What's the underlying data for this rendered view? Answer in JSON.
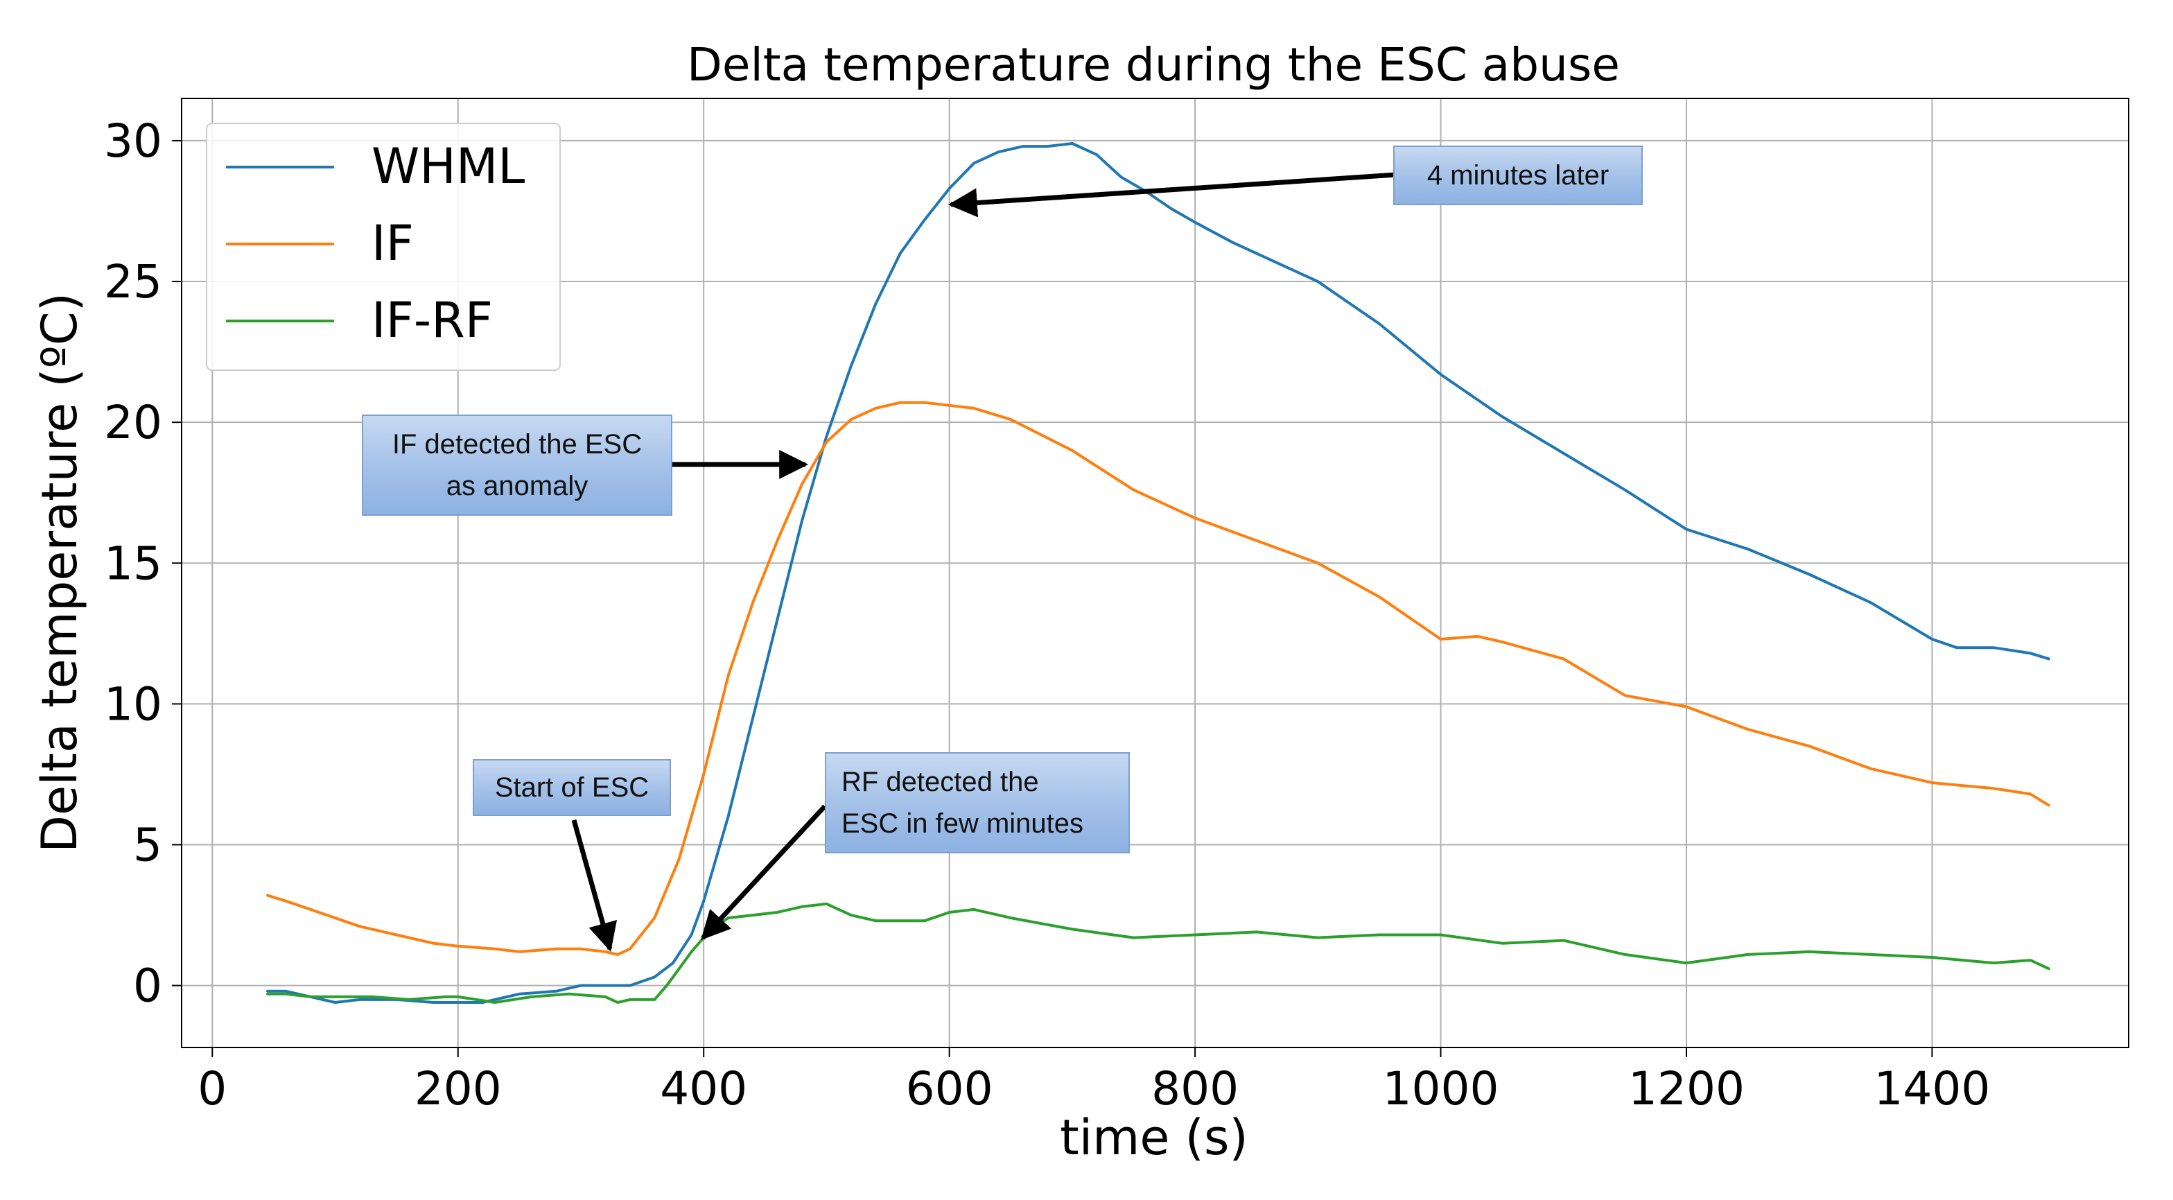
{
  "chart_data": {
    "type": "line",
    "title": "Delta temperature during the ESC abuse",
    "xlabel": "time (s)",
    "ylabel": "Delta temperature (ºC)",
    "xlim": [
      -25,
      1560
    ],
    "ylim": [
      -2.2,
      31.5
    ],
    "xticks": [
      0,
      200,
      400,
      600,
      800,
      1000,
      1200,
      1400
    ],
    "yticks": [
      0,
      5,
      10,
      15,
      20,
      25,
      30
    ],
    "grid": true,
    "legend_position": "top-left",
    "series": [
      {
        "name": "WHML",
        "color": "#1f77b4",
        "x": [
          45,
          60,
          80,
          100,
          120,
          150,
          180,
          200,
          220,
          250,
          280,
          300,
          320,
          340,
          360,
          375,
          390,
          400,
          420,
          440,
          460,
          480,
          500,
          520,
          540,
          560,
          580,
          600,
          620,
          640,
          660,
          680,
          700,
          720,
          740,
          760,
          780,
          800,
          830,
          860,
          900,
          950,
          1000,
          1050,
          1100,
          1150,
          1200,
          1250,
          1300,
          1350,
          1400,
          1420,
          1450,
          1480,
          1495
        ],
        "y": [
          -0.2,
          -0.2,
          -0.4,
          -0.6,
          -0.5,
          -0.5,
          -0.6,
          -0.6,
          -0.6,
          -0.3,
          -0.2,
          0,
          0,
          0,
          0.3,
          0.8,
          1.8,
          3,
          6,
          9.5,
          13,
          16.5,
          19.5,
          22,
          24.2,
          26,
          27.2,
          28.3,
          29.2,
          29.6,
          29.8,
          29.8,
          29.9,
          29.5,
          28.7,
          28.2,
          27.6,
          27.1,
          26.4,
          25.8,
          25,
          23.5,
          21.7,
          20.2,
          18.9,
          17.6,
          16.2,
          15.5,
          14.6,
          13.6,
          12.3,
          12,
          12,
          11.8,
          11.6
        ]
      },
      {
        "name": "IF",
        "color": "#ff7f0e",
        "x": [
          45,
          60,
          80,
          100,
          120,
          150,
          180,
          200,
          230,
          250,
          280,
          300,
          320,
          330,
          340,
          360,
          380,
          400,
          420,
          440,
          460,
          480,
          500,
          520,
          540,
          560,
          580,
          600,
          620,
          650,
          700,
          750,
          800,
          850,
          900,
          950,
          1000,
          1030,
          1050,
          1100,
          1150,
          1200,
          1250,
          1300,
          1350,
          1400,
          1450,
          1480,
          1495
        ],
        "y": [
          3.2,
          3,
          2.7,
          2.4,
          2.1,
          1.8,
          1.5,
          1.4,
          1.3,
          1.2,
          1.3,
          1.3,
          1.2,
          1.1,
          1.3,
          2.4,
          4.5,
          7.5,
          11,
          13.6,
          15.8,
          17.8,
          19.3,
          20.1,
          20.5,
          20.7,
          20.7,
          20.6,
          20.5,
          20.1,
          19,
          17.6,
          16.6,
          15.8,
          15,
          13.8,
          12.3,
          12.4,
          12.2,
          11.6,
          10.3,
          9.9,
          9.1,
          8.5,
          7.7,
          7.2,
          7,
          6.8,
          6.4
        ]
      },
      {
        "name": "IF-RF",
        "color": "#2ca02c",
        "x": [
          45,
          60,
          80,
          100,
          130,
          160,
          190,
          200,
          230,
          260,
          290,
          320,
          330,
          340,
          360,
          370,
          380,
          390,
          400,
          410,
          420,
          440,
          460,
          480,
          500,
          520,
          540,
          560,
          580,
          600,
          620,
          650,
          700,
          750,
          800,
          850,
          900,
          950,
          1000,
          1050,
          1100,
          1150,
          1200,
          1250,
          1300,
          1350,
          1400,
          1450,
          1480,
          1495
        ],
        "y": [
          -0.3,
          -0.3,
          -0.4,
          -0.4,
          -0.4,
          -0.5,
          -0.4,
          -0.4,
          -0.6,
          -0.4,
          -0.3,
          -0.4,
          -0.6,
          -0.5,
          -0.5,
          0,
          0.6,
          1.2,
          1.7,
          2.1,
          2.4,
          2.5,
          2.6,
          2.8,
          2.9,
          2.5,
          2.3,
          2.3,
          2.3,
          2.6,
          2.7,
          2.4,
          2.0,
          1.7,
          1.8,
          1.9,
          1.7,
          1.8,
          1.8,
          1.5,
          1.6,
          1.1,
          0.8,
          1.1,
          1.2,
          1.1,
          1.0,
          0.8,
          0.9,
          0.6
        ]
      }
    ],
    "annotations": [
      {
        "text": "4 minutes later",
        "target": [
          605,
          27.9
        ]
      },
      {
        "text": "IF detected the ESC as anomaly",
        "lines": [
          "IF detected the ESC",
          "as anomaly"
        ],
        "target": [
          485,
          18.3
        ]
      },
      {
        "text": "Start of ESC",
        "target": [
          325,
          1.3
        ]
      },
      {
        "text": "RF detected the ESC in few minutes",
        "lines": [
          "RF detected the",
          "ESC in few minutes"
        ],
        "target": [
          405,
          1.6
        ]
      }
    ]
  }
}
